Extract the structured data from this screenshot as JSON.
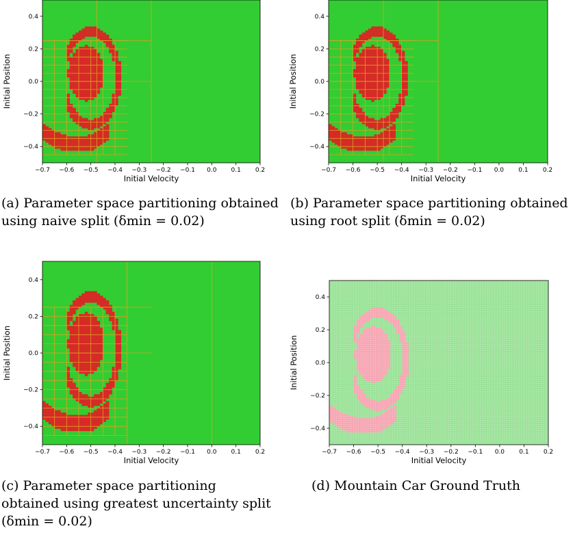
{
  "colors": {
    "safe": "#32cd32",
    "unsafe": "#d62a26",
    "split_line": "#e0a020",
    "truth_safe": "#9ee39b",
    "truth_unsafe": "#f7a8b5"
  },
  "captions": {
    "a": "(a) Parameter space partitioning obtained using naive split (δmin = 0.02)",
    "b": "(b) Parameter space partitioning obtained using root split (δmin = 0.02)",
    "c": "(c) Parameter space partitioning obtained using greatest uncertainty split (δmin = 0.02)",
    "d": "(d) Mountain Car Ground Truth"
  },
  "chart_data": [
    {
      "id": "a",
      "type": "heatmap",
      "xlabel": "Initial Velocity",
      "ylabel": "Initial Position",
      "xlim": [
        -0.7,
        0.2
      ],
      "ylim": [
        -0.5,
        0.5
      ],
      "xticks": [
        "−0.7",
        "−0.6",
        "−0.5",
        "−0.4",
        "−0.3",
        "−0.2",
        "−0.1",
        "0.0",
        "0.1",
        "0.2"
      ],
      "yticks": [
        "−0.4",
        "−0.2",
        "0.0",
        "0.2",
        "0.4"
      ],
      "legend": "none",
      "split_x": [
        -0.475,
        -0.25
      ],
      "split_y": [
        0.0,
        0.25
      ]
    },
    {
      "id": "b",
      "type": "heatmap",
      "xlabel": "Initial Velocity",
      "ylabel": "Initial Position",
      "xlim": [
        -0.7,
        0.2
      ],
      "ylim": [
        -0.5,
        0.5
      ],
      "xticks": [
        "−0.7",
        "−0.6",
        "−0.5",
        "−0.4",
        "−0.3",
        "−0.2",
        "−0.1",
        "0.0",
        "0.1",
        "0.2"
      ],
      "yticks": [
        "−0.4",
        "−0.2",
        "0.0",
        "0.2",
        "0.4"
      ],
      "legend": "none",
      "split_x": [
        -0.475,
        -0.25
      ],
      "split_y": [
        0.0,
        0.25
      ]
    },
    {
      "id": "c",
      "type": "heatmap",
      "xlabel": "Initial Velocity",
      "ylabel": "Initial Position",
      "xlim": [
        -0.7,
        0.2
      ],
      "ylim": [
        -0.5,
        0.5
      ],
      "xticks": [
        "−0.7",
        "−0.6",
        "−0.5",
        "−0.4",
        "−0.3",
        "−0.2",
        "−0.1",
        "0.0",
        "0.1",
        "0.2"
      ],
      "yticks": [
        "−0.4",
        "−0.2",
        "0.0",
        "0.2",
        "0.4"
      ],
      "legend": "none",
      "split_x": [
        -0.35,
        0.0
      ],
      "split_y": [
        0.0,
        0.25
      ]
    },
    {
      "id": "d",
      "type": "heatmap",
      "xlabel": "Initial Velocity",
      "ylabel": "Initial Position",
      "xlim": [
        -0.7,
        0.2
      ],
      "ylim": [
        -0.5,
        0.5
      ],
      "xticks": [
        "−0.7",
        "−0.6",
        "−0.5",
        "−0.4",
        "−0.3",
        "−0.2",
        "−0.1",
        "0.0",
        "0.1",
        "0.2"
      ],
      "yticks": [
        "−0.4",
        "−0.2",
        "0.0",
        "0.2",
        "0.4"
      ],
      "legend": "none",
      "grid": "dense dotted sample grid"
    }
  ]
}
